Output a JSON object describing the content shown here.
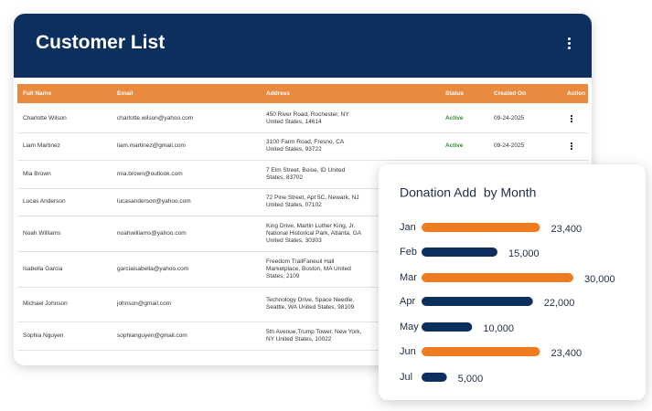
{
  "customer_list": {
    "title": "Customer List",
    "columns": [
      "Full Name",
      "Email",
      "Address",
      "Status",
      "Created On",
      "Action"
    ],
    "rows": [
      [
        "Charlotte Wilson",
        "charlotte.wilson@yahoo.com",
        "450 River Road, Rochester, NY United States, 14614",
        "Active",
        "09-24-2025"
      ],
      [
        "Liam Martinez",
        "liam.martinez@gmail.com",
        "3100 Farm Road, Fresno, CA United States, 93722",
        "Active",
        "09-24-2025"
      ],
      [
        "Mia Brown",
        "mia.brown@outlook.com",
        "7 Elm Street, Boise, ID United States, 83702"
      ],
      [
        "Lucas Anderson",
        "lucasanderson@yahoo.com",
        "72 Pine Street, Apt 5C, Newark, NJ United States, 07102"
      ],
      [
        "Noah Williams",
        "noahwilliams@yahoo.com",
        "King Drive, Martin Luther King, Jr. National Historical Park, Atlanta, GA United States, 30303"
      ],
      [
        "Isabella Garcia",
        "garciaisabella@yahoo.com",
        "Freedom TrailFaneuil Hall Marketplace, Boston, MA United States, 2109"
      ],
      [
        "Michael Johnson",
        "johnson@gmail.com",
        "Technology Drive, Space Needle, Seattle, WA United States, 98109"
      ],
      [
        "Sophia Nguyen",
        "sophianguyen@gmail.com",
        "5th Avenue,Trump Tower, New York, NY United States, 10022"
      ]
    ]
  },
  "chart_data": {
    "type": "bar",
    "orientation": "horizontal",
    "title": "Donation Add  by Month",
    "categories": [
      "Jan",
      "Feb",
      "Mar",
      "Apr",
      "May",
      "Jun",
      "Jul"
    ],
    "values": [
      23400,
      15000,
      30000,
      22000,
      10000,
      23400,
      5000
    ],
    "value_labels": [
      "23,400",
      "15,000",
      "30,000",
      "22,000",
      "10,000",
      "23,400",
      "5,000"
    ],
    "colors": [
      "#f07a1e",
      "#0d2f5e",
      "#f07a1e",
      "#0d2f5e",
      "#0d2f5e",
      "#f07a1e",
      "#0d2f5e"
    ]
  }
}
